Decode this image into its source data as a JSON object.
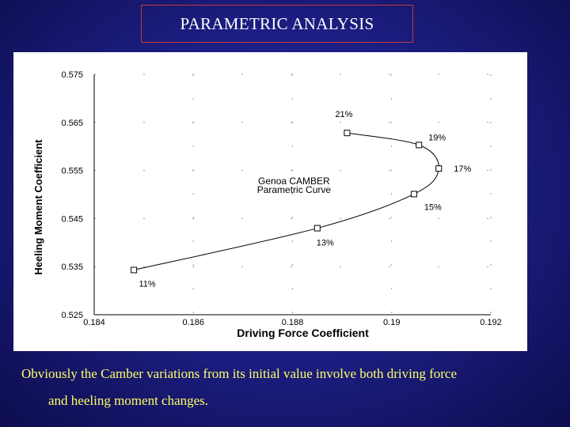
{
  "slide": {
    "title": "PARAMETRIC ANALYSIS",
    "caption_line1": "Obviously the Camber variations from its initial value involve both driving force",
    "caption_line2": "and heeling moment changes."
  },
  "chart_data": {
    "type": "line",
    "xlabel": "Driving Force Coefficient",
    "ylabel": "Heeling Moment Coefficient",
    "xlim": [
      0.184,
      0.192
    ],
    "ylim": [
      0.525,
      0.575
    ],
    "x_ticks": [
      "0.184",
      "0.186",
      "0.188",
      "0.19",
      "0.192"
    ],
    "y_ticks": [
      "0.575",
      "0.565",
      "0.555",
      "0.545",
      "0.535",
      "0.525"
    ],
    "annotation": [
      "Genoa CAMBER",
      "Parametric Curve"
    ],
    "series": [
      {
        "x": [
          0.1848,
          0.1885,
          0.19045,
          0.19095,
          0.19055,
          0.1891
        ],
        "y": [
          0.5343,
          0.543,
          0.5501,
          0.5554,
          0.5603,
          0.5628
        ],
        "labels": [
          "11%",
          "13%",
          "15%",
          "17%",
          "19%",
          "21%"
        ]
      }
    ],
    "grid": true
  }
}
